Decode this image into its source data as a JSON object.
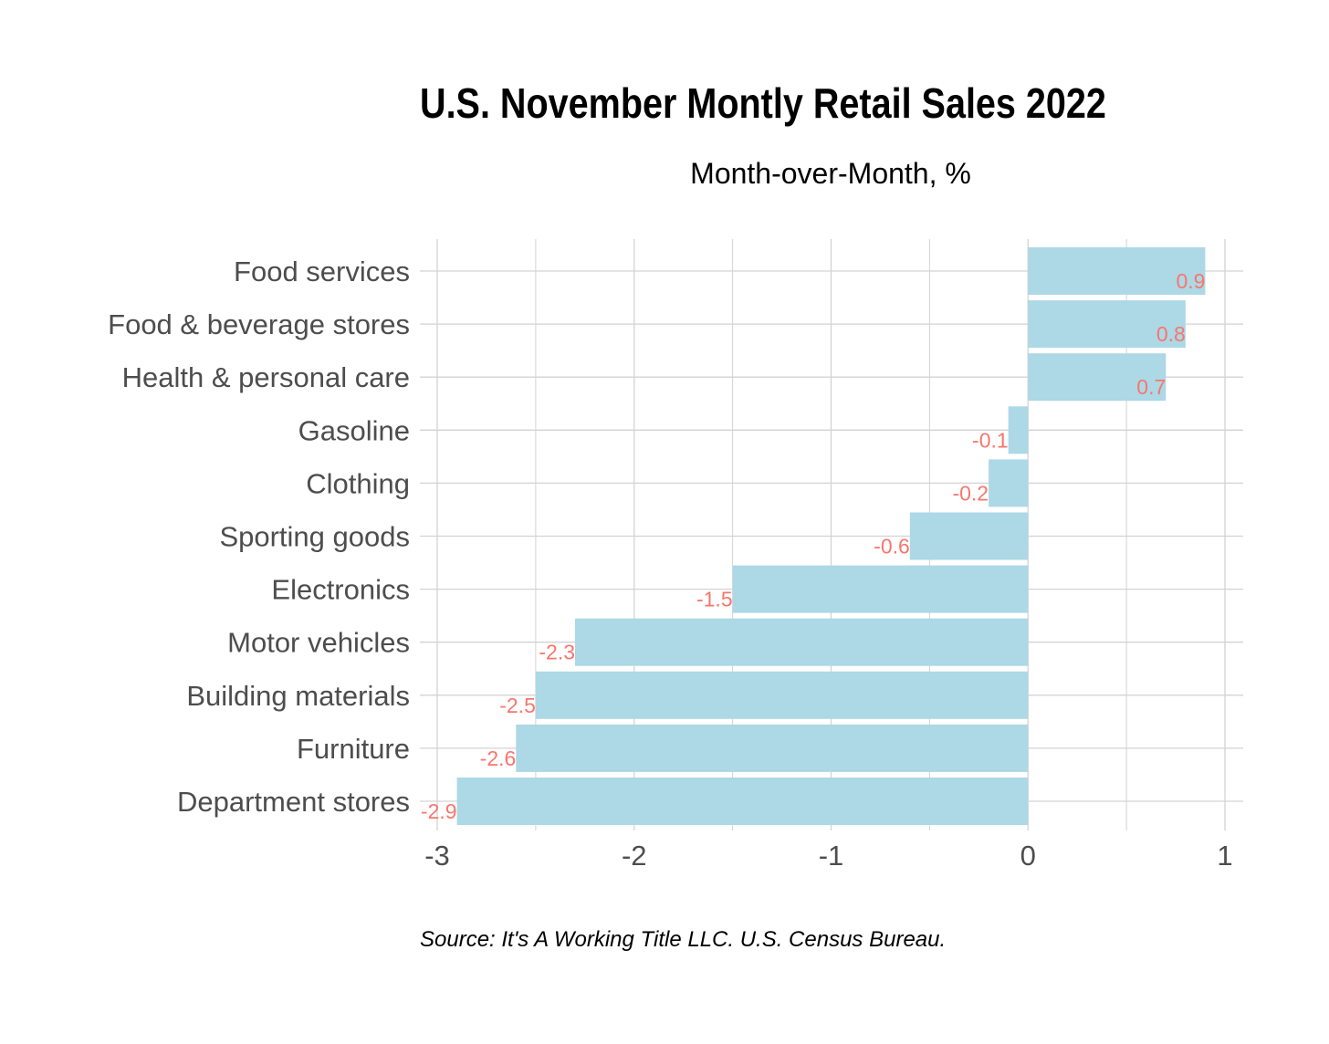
{
  "chart_data": {
    "type": "bar",
    "orientation": "horizontal",
    "title": "U.S. November Montly Retail Sales 2022",
    "subtitle": "Month-over-Month, %",
    "caption": "Source: It's A Working Title LLC. U.S. Census Bureau.",
    "xlabel": "",
    "ylabel": "",
    "xlim": [
      -3,
      1
    ],
    "xticks": [
      -3,
      -2,
      -1,
      0,
      1
    ],
    "grid": true,
    "categories": [
      "Food services",
      "Food & beverage stores",
      "Health & personal care",
      "Gasoline",
      "Clothing",
      "Sporting goods",
      "Electronics",
      "Motor vehicles",
      "Building materials",
      "Furniture",
      "Department stores"
    ],
    "values": [
      0.9,
      0.8,
      0.7,
      -0.1,
      -0.2,
      -0.6,
      -1.5,
      -2.3,
      -2.5,
      -2.6,
      -2.9
    ],
    "data_labels": [
      "0.9",
      "0.8",
      "0.7",
      "-0.1",
      "-0.2",
      "-0.6",
      "-1.5",
      "-2.3",
      "-2.5",
      "-2.6",
      "-2.9"
    ],
    "colors": {
      "bar_fill": "#add8e6",
      "label_text": "#f8766d",
      "grid": "#d3d3d3",
      "axis_text": "#4d4d4d"
    }
  }
}
